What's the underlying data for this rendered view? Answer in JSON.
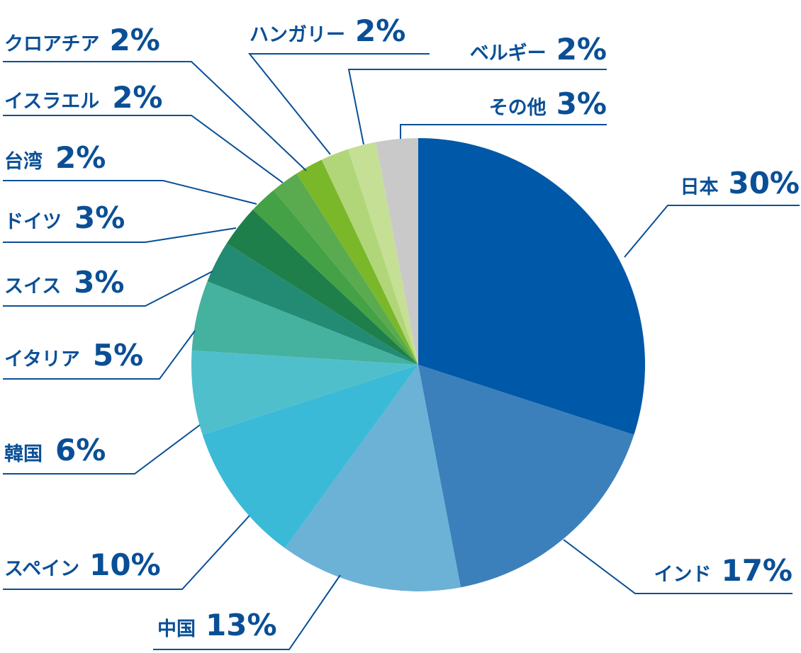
{
  "chart_data": {
    "type": "pie",
    "title": "",
    "start": "12 o'clock, clockwise",
    "slices": [
      {
        "name": "日本",
        "value": 30,
        "label_value": "30%",
        "color": "#0058a8"
      },
      {
        "name": "インド",
        "value": 17,
        "label_value": "17%",
        "color": "#3b80bb"
      },
      {
        "name": "中国",
        "value": 13,
        "label_value": "13%",
        "color": "#6cb1d6"
      },
      {
        "name": "スペイン",
        "value": 10,
        "label_value": "10%",
        "color": "#3bbad7"
      },
      {
        "name": "韓国",
        "value": 6,
        "label_value": "6%",
        "color": "#50bfcc"
      },
      {
        "name": "イタリア",
        "value": 5,
        "label_value": "5%",
        "color": "#45b29f"
      },
      {
        "name": "スイス",
        "value": 3,
        "label_value": "3%",
        "color": "#238b73"
      },
      {
        "name": "ドイツ",
        "value": 3,
        "label_value": "3%",
        "color": "#1e7f4a"
      },
      {
        "name": "台湾",
        "value": 2,
        "label_value": "2%",
        "color": "#45a145"
      },
      {
        "name": "イスラエル",
        "value": 2,
        "label_value": "2%",
        "color": "#5aab50"
      },
      {
        "name": "クロアチア",
        "value": 2,
        "label_value": "2%",
        "color": "#7ab82a"
      },
      {
        "name": "ハンガリー",
        "value": 2,
        "label_value": "2%",
        "color": "#b1d67a"
      },
      {
        "name": "ベルギー",
        "value": 2,
        "label_value": "2%",
        "color": "#c5e095"
      },
      {
        "name": "その他",
        "value": 3,
        "label_value": "3%",
        "color": "#c9c9c9"
      }
    ]
  }
}
